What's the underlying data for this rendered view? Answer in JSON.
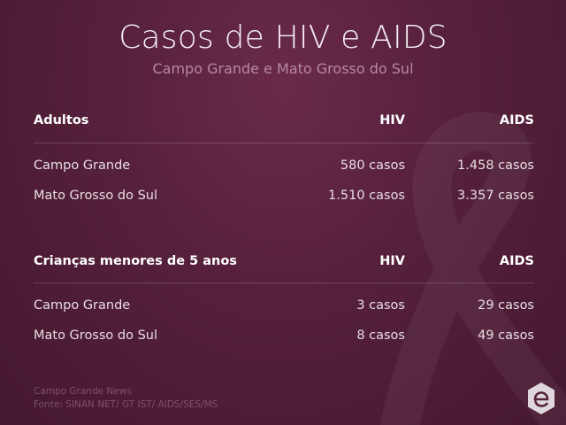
{
  "title": "Casos de HIV e AIDS",
  "subtitle": "Campo Grande e Mato Grosso do Sul",
  "sections": [
    {
      "header": {
        "label": "Adultos",
        "col1": "HIV",
        "col2": "AIDS"
      },
      "rows": [
        {
          "label": "Campo Grande",
          "hiv": "580 casos",
          "aids": "1.458 casos"
        },
        {
          "label": "Mato Grosso do Sul",
          "hiv": "1.510 casos",
          "aids": "3.357 casos"
        }
      ]
    },
    {
      "header": {
        "label": "Crianças menores de 5 anos",
        "col1": "HIV",
        "col2": "AIDS"
      },
      "rows": [
        {
          "label": "Campo Grande",
          "hiv": "3 casos",
          "aids": "29 casos"
        },
        {
          "label": "Mato Grosso do Sul",
          "hiv": "8 casos",
          "aids": "49 casos"
        }
      ]
    }
  ],
  "footer": {
    "credit": "Campo Grande News",
    "source": "Fonte: SINAN NET/ GT IST/ AIDS/SES/MS"
  },
  "icons": {
    "background": "awareness-ribbon-icon",
    "logo": "campo-grande-news-logo-icon"
  },
  "colors": {
    "background": "#55203b",
    "subtitle": "#b58aa0",
    "footer": "#7e5169"
  }
}
